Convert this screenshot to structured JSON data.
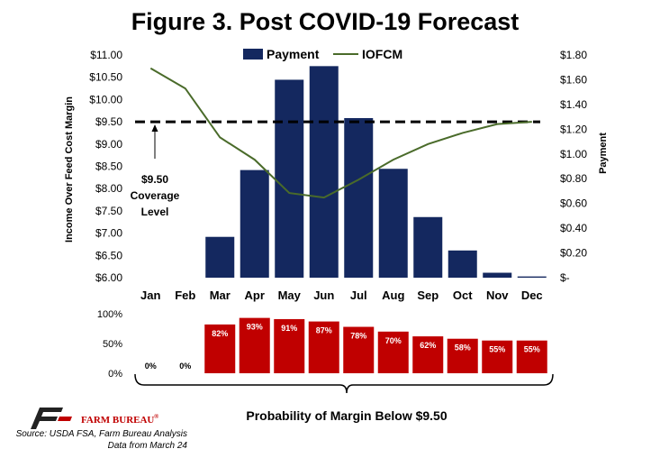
{
  "title": "Figure 3. Post COVID-19 Forecast",
  "chart_data": [
    {
      "type": "bar+line",
      "categories": [
        "Jan",
        "Feb",
        "Mar",
        "Apr",
        "May",
        "Jun",
        "Jul",
        "Aug",
        "Sep",
        "Oct",
        "Nov",
        "Dec"
      ],
      "series": [
        {
          "name": "Payment",
          "type": "bar",
          "axis": "right",
          "color": "#14285f",
          "values": [
            0,
            0,
            0.33,
            0.87,
            1.6,
            1.71,
            1.29,
            0.88,
            0.49,
            0.22,
            0.04,
            0.01
          ]
        },
        {
          "name": "IOFCM",
          "type": "line",
          "axis": "left",
          "color": "#4a6b2a",
          "values": [
            10.7,
            10.25,
            9.15,
            8.65,
            7.9,
            7.8,
            8.2,
            8.65,
            9.0,
            9.25,
            9.45,
            9.5
          ]
        }
      ],
      "ylabel_left": "Income Over Feed Cost Margin",
      "ylabel_right": "Payment",
      "yticks_left": [
        "$11.00",
        "$10.50",
        "$10.00",
        "$9.50",
        "$9.00",
        "$8.50",
        "$8.00",
        "$7.50",
        "$7.00",
        "$6.50",
        "$6.00"
      ],
      "ylim_left": [
        6.0,
        11.0
      ],
      "yticks_right": [
        "$1.80",
        "$1.60",
        "$1.40",
        "$1.20",
        "$1.00",
        "$0.80",
        "$0.60",
        "$0.40",
        "$0.20",
        "$-"
      ],
      "ylim_right": [
        0,
        1.8
      ],
      "coverage_level": 9.5,
      "coverage_note": [
        "$9.50",
        "Coverage",
        "Level"
      ],
      "legend": "top-center",
      "grid": false
    },
    {
      "type": "bar",
      "categories": [
        "Jan",
        "Feb",
        "Mar",
        "Apr",
        "May",
        "Jun",
        "Jul",
        "Aug",
        "Sep",
        "Oct",
        "Nov",
        "Dec"
      ],
      "values": [
        0,
        0,
        82,
        93,
        91,
        87,
        78,
        70,
        62,
        58,
        55,
        55
      ],
      "value_labels": [
        "0%",
        "0%",
        "82%",
        "93%",
        "91%",
        "87%",
        "78%",
        "70%",
        "62%",
        "58%",
        "55%",
        "55%"
      ],
      "yticks": [
        "100%",
        "50%",
        "0%"
      ],
      "ylim": [
        0,
        100
      ],
      "color": "#c00000",
      "caption": "Probability of Margin Below $9.50"
    }
  ],
  "footer": {
    "logo_text": "FARM BUREAU",
    "logo_mark": "®",
    "source": "Source: USDA FSA, Farm Bureau Analysis",
    "data_date": "Data from March 24"
  }
}
